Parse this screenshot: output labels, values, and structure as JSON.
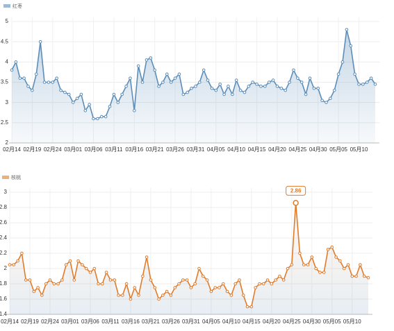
{
  "chart_data": [
    {
      "type": "line",
      "categories": [
        "02月14",
        null,
        null,
        null,
        null,
        "02月19",
        null,
        null,
        null,
        null,
        "02月24",
        null,
        null,
        null,
        null,
        "03月01",
        null,
        null,
        null,
        null,
        "03月06",
        null,
        null,
        null,
        null,
        "03月11",
        null,
        null,
        null,
        null,
        "03月16",
        null,
        null,
        null,
        null,
        "03月21",
        null,
        null,
        null,
        null,
        "03月26",
        null,
        null,
        null,
        null,
        "03月31",
        null,
        null,
        null,
        null,
        "04月05",
        null,
        null,
        null,
        null,
        "04月10",
        null,
        null,
        null,
        null,
        "04月15",
        null,
        null,
        null,
        null,
        "04月20",
        null,
        null,
        null,
        null,
        "04月25",
        null,
        null,
        null,
        null,
        "04月30",
        null,
        null,
        null,
        null,
        "05月05",
        null,
        null,
        null,
        null,
        "05月10",
        null,
        null,
        null,
        null
      ],
      "series": [
        {
          "name": "红枣",
          "color": "#5b8db8",
          "values": [
            3.8,
            4.0,
            3.6,
            3.6,
            3.4,
            3.3,
            3.7,
            4.5,
            3.5,
            3.5,
            3.5,
            3.6,
            3.3,
            3.25,
            3.2,
            3.0,
            3.1,
            3.2,
            2.8,
            2.95,
            2.6,
            2.6,
            2.65,
            2.65,
            2.9,
            3.2,
            3.0,
            3.2,
            3.4,
            3.6,
            2.8,
            3.9,
            3.5,
            4.05,
            4.1,
            3.8,
            3.4,
            3.5,
            3.7,
            3.5,
            3.6,
            3.7,
            3.2,
            3.25,
            3.35,
            3.4,
            3.5,
            3.8,
            3.55,
            3.35,
            3.3,
            3.45,
            3.2,
            3.4,
            3.2,
            3.55,
            3.3,
            3.25,
            3.4,
            3.5,
            3.45,
            3.4,
            3.4,
            3.5,
            3.55,
            3.4,
            3.35,
            3.3,
            3.5,
            3.8,
            3.6,
            3.5,
            3.2,
            3.6,
            3.35,
            3.35,
            3.05,
            3.0,
            3.1,
            3.3,
            3.7,
            4.0,
            4.8,
            4.4,
            3.7,
            3.45,
            3.45,
            3.5,
            3.6,
            3.45
          ]
        }
      ],
      "ylim": [
        2,
        5
      ],
      "yticks": [
        2,
        2.5,
        3,
        3.5,
        4,
        4.5,
        5
      ],
      "grid": true
    },
    {
      "type": "line",
      "categories": [
        "02月14",
        null,
        null,
        null,
        null,
        "02月19",
        null,
        null,
        null,
        null,
        "02月24",
        null,
        null,
        null,
        null,
        "03月01",
        null,
        null,
        null,
        null,
        "03月06",
        null,
        null,
        null,
        null,
        "03月11",
        null,
        null,
        null,
        null,
        "03月16",
        null,
        null,
        null,
        null,
        "03月21",
        null,
        null,
        null,
        null,
        "03月26",
        null,
        null,
        null,
        null,
        "03月31",
        null,
        null,
        null,
        null,
        "04月05",
        null,
        null,
        null,
        null,
        "04月10",
        null,
        null,
        null,
        null,
        "04月15",
        null,
        null,
        null,
        null,
        "04月20",
        null,
        null,
        null,
        null,
        "04月25",
        null,
        null,
        null,
        null,
        "04月30",
        null,
        null,
        null,
        null,
        "05月05",
        null,
        null,
        null,
        null,
        "05月10",
        null,
        null,
        null,
        null
      ],
      "series": [
        {
          "name": "核桃",
          "color": "#e07b2a",
          "values": [
            2.05,
            2.05,
            2.1,
            2.2,
            1.85,
            1.85,
            1.7,
            1.75,
            1.65,
            1.8,
            1.85,
            1.8,
            1.8,
            1.85,
            2.05,
            2.1,
            1.85,
            2.1,
            2.05,
            2.0,
            1.95,
            2.0,
            1.8,
            1.8,
            1.95,
            1.85,
            1.85,
            1.65,
            1.65,
            1.8,
            1.6,
            1.75,
            1.65,
            1.9,
            2.15,
            1.85,
            1.75,
            1.6,
            1.65,
            1.7,
            1.65,
            1.75,
            1.8,
            1.85,
            1.85,
            1.75,
            1.8,
            2.0,
            1.9,
            1.85,
            1.7,
            1.75,
            1.75,
            1.8,
            1.7,
            1.65,
            1.8,
            1.85,
            1.65,
            1.5,
            1.5,
            1.75,
            1.8,
            1.8,
            1.85,
            1.8,
            1.85,
            1.9,
            1.85,
            2.0,
            2.05,
            2.86,
            2.2,
            2.05,
            2.05,
            2.15,
            2.0,
            1.95,
            1.95,
            2.25,
            2.28,
            2.15,
            2.1,
            2.0,
            2.05,
            1.9,
            1.9,
            2.05,
            1.9,
            1.88
          ]
        }
      ],
      "ylim": [
        1.4,
        3
      ],
      "yticks": [
        1.4,
        1.6,
        1.8,
        2,
        2.2,
        2.4,
        2.6,
        2.8,
        3
      ],
      "grid": true
    }
  ]
}
